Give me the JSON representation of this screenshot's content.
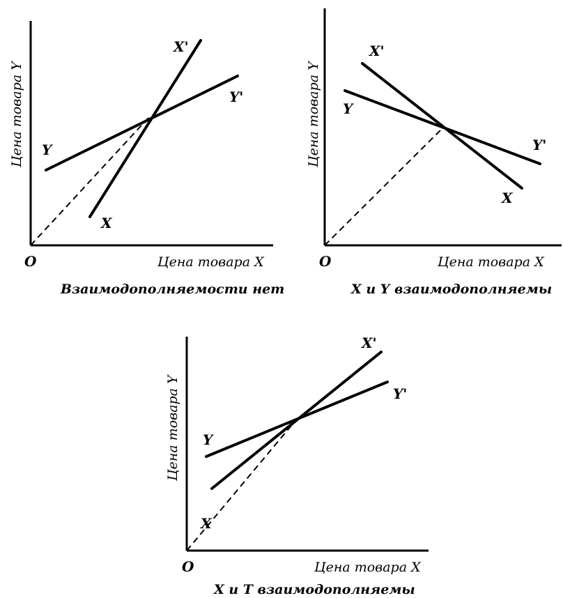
{
  "panels": [
    {
      "id": "no-complement",
      "xaxis_label": "Цена товара X",
      "yaxis_label": "Цена товара Y",
      "origin_label": "O",
      "caption": "Взаимодополняемости нет",
      "markers": {
        "X": "X",
        "X_prime": "X'",
        "Y": "Y",
        "Y_prime": "Y'"
      }
    },
    {
      "id": "xy-complement",
      "xaxis_label": "Цена товара X",
      "yaxis_label": "Цена товара Y",
      "origin_label": "O",
      "caption": "X и Y взаимодополняемы",
      "markers": {
        "X": "X",
        "X_prime": "X'",
        "Y": "Y",
        "Y_prime": "Y'"
      }
    },
    {
      "id": "xt-complement",
      "xaxis_label": "Цена товара X",
      "yaxis_label": "Цена товара Y",
      "origin_label": "O",
      "caption": "X и T взаимодополняемы",
      "markers": {
        "X": "X",
        "X_prime": "X'",
        "Y": "Y",
        "Y_prime": "Y'"
      }
    }
  ]
}
